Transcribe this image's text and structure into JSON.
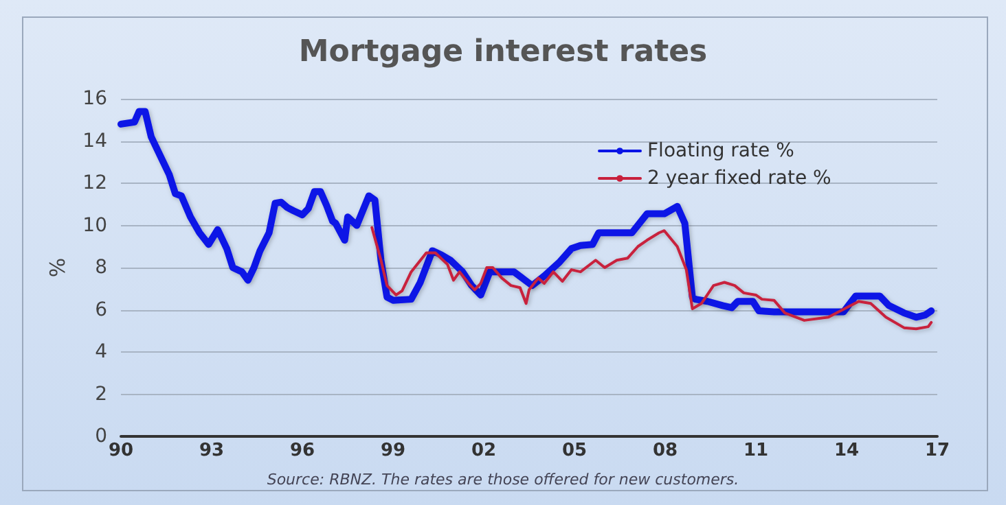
{
  "chart_data": {
    "type": "line",
    "title": "Mortgage interest rates",
    "ylabel": "%",
    "annotations": [
      "Source: RBNZ. The rates are those offered for new customers."
    ],
    "xlim": [
      1990,
      2017
    ],
    "xticks": [
      {
        "value": 1990,
        "label": "90"
      },
      {
        "value": 1993,
        "label": "93"
      },
      {
        "value": 1996,
        "label": "96"
      },
      {
        "value": 1999,
        "label": "99"
      },
      {
        "value": 2002,
        "label": "02"
      },
      {
        "value": 2005,
        "label": "05"
      },
      {
        "value": 2008,
        "label": "08"
      },
      {
        "value": 2011,
        "label": "11"
      },
      {
        "value": 2014,
        "label": "14"
      },
      {
        "value": 2017,
        "label": "17"
      }
    ],
    "ylim": [
      0,
      16
    ],
    "yticks": [
      0,
      2,
      4,
      6,
      8,
      10,
      12,
      14,
      16
    ],
    "grid": "y",
    "legend": "top right",
    "marker": "none",
    "line_style": "solid",
    "series": [
      {
        "name": "Floating rate %",
        "color": "#0a14e6",
        "x": [
          1990.0,
          1990.45,
          1990.6,
          1990.8,
          1991.0,
          1991.4,
          1991.6,
          1991.8,
          1992.0,
          1992.3,
          1992.6,
          1992.9,
          1993.2,
          1993.5,
          1993.7,
          1994.0,
          1994.2,
          1994.4,
          1994.6,
          1994.9,
          1995.1,
          1995.3,
          1995.5,
          1995.7,
          1996.0,
          1996.2,
          1996.4,
          1996.6,
          1996.8,
          1997.0,
          1997.1,
          1997.4,
          1997.5,
          1997.8,
          1998.2,
          1998.4,
          1998.6,
          1998.8,
          1999.0,
          1999.6,
          1999.9,
          2000.3,
          2000.6,
          2000.9,
          2001.3,
          2001.6,
          2001.9,
          2002.2,
          2003.0,
          2003.6,
          2004.0,
          2004.5,
          2004.9,
          2005.2,
          2005.6,
          2005.8,
          2006.9,
          2007.4,
          2007.97,
          2008.4,
          2008.65,
          2008.9,
          2009.0,
          2009.4,
          2009.9,
          2010.2,
          2010.4,
          2010.9,
          2011.1,
          2011.6,
          2013.0,
          2013.9,
          2014.3,
          2015.1,
          2015.4,
          2015.9,
          2016.3,
          2016.6,
          2016.8
        ],
        "values": [
          14.8,
          14.9,
          15.4,
          15.4,
          14.2,
          13.0,
          12.4,
          11.5,
          11.4,
          10.4,
          9.65,
          9.1,
          9.8,
          8.9,
          8.0,
          7.8,
          7.4,
          8.0,
          8.8,
          9.65,
          11.05,
          11.1,
          10.85,
          10.7,
          10.5,
          10.8,
          11.6,
          11.6,
          10.95,
          10.2,
          10.1,
          9.3,
          10.4,
          10.0,
          11.4,
          11.2,
          8.35,
          6.6,
          6.45,
          6.5,
          7.3,
          8.8,
          8.6,
          8.35,
          7.8,
          7.15,
          6.7,
          7.8,
          7.8,
          7.15,
          7.6,
          8.25,
          8.9,
          9.05,
          9.1,
          9.65,
          9.65,
          10.55,
          10.55,
          10.9,
          10.1,
          6.6,
          6.5,
          6.4,
          6.2,
          6.1,
          6.4,
          6.4,
          5.95,
          5.9,
          5.9,
          5.9,
          6.65,
          6.65,
          6.2,
          5.85,
          5.65,
          5.75,
          5.95
        ]
      },
      {
        "name": "2 year fixed rate %",
        "color": "#c8203c",
        "x": [
          1998.3,
          1998.6,
          1998.8,
          1999.1,
          1999.3,
          1999.6,
          2000.1,
          2000.4,
          2000.8,
          2001.0,
          2001.2,
          2001.5,
          2001.7,
          2001.9,
          2002.1,
          2002.3,
          2002.6,
          2002.9,
          2003.2,
          2003.4,
          2003.5,
          2003.8,
          2004.0,
          2004.3,
          2004.6,
          2004.9,
          2005.2,
          2005.7,
          2006.0,
          2006.4,
          2006.76,
          2007.1,
          2007.4,
          2007.8,
          2007.97,
          2008.4,
          2008.7,
          2008.9,
          2009.2,
          2009.6,
          2009.96,
          2010.3,
          2010.6,
          2011.0,
          2011.2,
          2011.6,
          2011.96,
          2012.6,
          2013.4,
          2013.8,
          2014.4,
          2014.8,
          2015.3,
          2015.9,
          2016.3,
          2016.7,
          2016.8
        ],
        "values": [
          9.9,
          8.35,
          7.15,
          6.7,
          6.9,
          7.8,
          8.7,
          8.7,
          8.15,
          7.4,
          7.8,
          7.25,
          6.95,
          7.25,
          8.0,
          8.0,
          7.5,
          7.15,
          7.05,
          6.3,
          6.95,
          7.5,
          7.25,
          7.8,
          7.35,
          7.9,
          7.8,
          8.35,
          8.0,
          8.35,
          8.45,
          9.0,
          9.3,
          9.65,
          9.75,
          9.0,
          7.9,
          6.05,
          6.3,
          7.15,
          7.3,
          7.15,
          6.8,
          6.7,
          6.5,
          6.45,
          5.85,
          5.5,
          5.65,
          5.95,
          6.4,
          6.3,
          5.65,
          5.15,
          5.1,
          5.2,
          5.4
        ]
      }
    ]
  }
}
